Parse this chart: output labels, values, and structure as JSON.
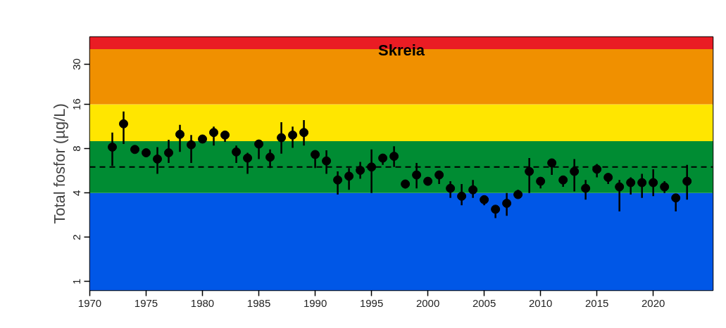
{
  "chart_data": {
    "type": "scatter",
    "title": "Skreia",
    "ylabel": "Total fosfor (µg/L)",
    "log": "y",
    "marker": "circle",
    "grid": false,
    "x": [
      1972,
      1973,
      1974,
      1975,
      1976,
      1977,
      1978,
      1979,
      1980,
      1981,
      1982,
      1983,
      1984,
      1985,
      1986,
      1987,
      1988,
      1989,
      1990,
      1991,
      1992,
      1993,
      1994,
      1995,
      1996,
      1997,
      1998,
      1999,
      2000,
      2001,
      2002,
      2003,
      2004,
      2005,
      2006,
      2007,
      2008,
      2009,
      2010,
      2011,
      2012,
      2013,
      2014,
      2015,
      2016,
      2017,
      2018,
      2019,
      2020,
      2021,
      2022,
      2023
    ],
    "series": [
      {
        "color": "#000000",
        "values": [
          8.2,
          11.8,
          7.9,
          7.5,
          6.8,
          7.5,
          10.0,
          8.5,
          9.3,
          10.3,
          9.9,
          7.6,
          6.9,
          8.6,
          7.0,
          9.5,
          9.9,
          10.3,
          7.3,
          6.6,
          4.9,
          5.2,
          5.7,
          6.0,
          6.9,
          7.1,
          4.6,
          5.3,
          4.8,
          5.3,
          4.3,
          3.8,
          4.2,
          3.6,
          3.1,
          3.4,
          3.9,
          5.6,
          4.8,
          6.4,
          4.9,
          5.6,
          4.3,
          5.8,
          5.1,
          4.4,
          4.7,
          4.7,
          4.7,
          4.4,
          3.7,
          4.8
        ],
        "errors": [
          [
            6.1,
            10.3
          ],
          [
            8.6,
            14.3
          ],
          null,
          null,
          [
            5.4,
            8.2
          ],
          [
            6.4,
            9.2
          ],
          [
            7.6,
            11.6
          ],
          [
            6.4,
            9.9
          ],
          null,
          [
            8.4,
            11.3
          ],
          [
            8.9,
            9.9
          ],
          [
            6.4,
            8.4
          ],
          [
            5.4,
            7.5
          ],
          [
            6.8,
            9.2
          ],
          [
            5.9,
            7.9
          ],
          [
            7.4,
            12.1
          ],
          [
            8.1,
            11.3
          ],
          [
            8.4,
            12.5
          ],
          [
            5.9,
            7.3
          ],
          [
            5.4,
            7.8
          ],
          [
            3.9,
            5.6
          ],
          [
            4.2,
            5.9
          ],
          [
            5.0,
            6.5
          ],
          [
            4.0,
            7.9
          ],
          [
            6.2,
            7.2
          ],
          [
            6.0,
            8.3
          ],
          [
            4.3,
            4.6
          ],
          [
            4.3,
            6.4
          ],
          [
            4.5,
            4.8
          ],
          [
            4.6,
            5.6
          ],
          [
            3.7,
            4.8
          ],
          [
            3.3,
            4.6
          ],
          [
            3.7,
            4.9
          ],
          [
            3.3,
            3.6
          ],
          [
            2.7,
            3.1
          ],
          [
            2.8,
            4.0
          ],
          [
            3.7,
            4.2
          ],
          [
            4.0,
            6.9
          ],
          [
            4.3,
            4.8
          ],
          [
            5.3,
            6.4
          ],
          [
            4.4,
            4.9
          ],
          [
            4.1,
            6.8
          ],
          [
            3.6,
            4.9
          ],
          [
            5.1,
            6.3
          ],
          [
            4.6,
            5.1
          ],
          [
            3.0,
            4.9
          ],
          [
            3.9,
            5.1
          ],
          [
            3.7,
            5.4
          ],
          [
            3.8,
            5.8
          ],
          [
            4.0,
            4.8
          ],
          [
            3.0,
            3.7
          ],
          [
            3.6,
            6.2
          ]
        ]
      }
    ],
    "xlim": [
      1970,
      2025.3
    ],
    "ylim": [
      0.87,
      46
    ],
    "xticks": [
      1970,
      1975,
      1980,
      1985,
      1990,
      1995,
      2000,
      2005,
      2010,
      2015,
      2020
    ],
    "yticks": [
      1,
      2,
      4,
      8,
      16,
      30
    ],
    "ref_lines": [
      {
        "axis": "y",
        "value": 6,
        "color": "#000000",
        "line_style": "dashed"
      }
    ],
    "bands": [
      {
        "axis": "y",
        "from": 0.87,
        "to": 4,
        "color": "#0057e7"
      },
      {
        "axis": "y",
        "from": 4,
        "to": 9,
        "color": "#008c33"
      },
      {
        "axis": "y",
        "from": 9,
        "to": 16,
        "color": "#ffe600"
      },
      {
        "axis": "y",
        "from": 16,
        "to": 38,
        "color": "#f09000"
      },
      {
        "axis": "y",
        "from": 38,
        "to": 46,
        "color": "#ea1c24"
      }
    ]
  }
}
